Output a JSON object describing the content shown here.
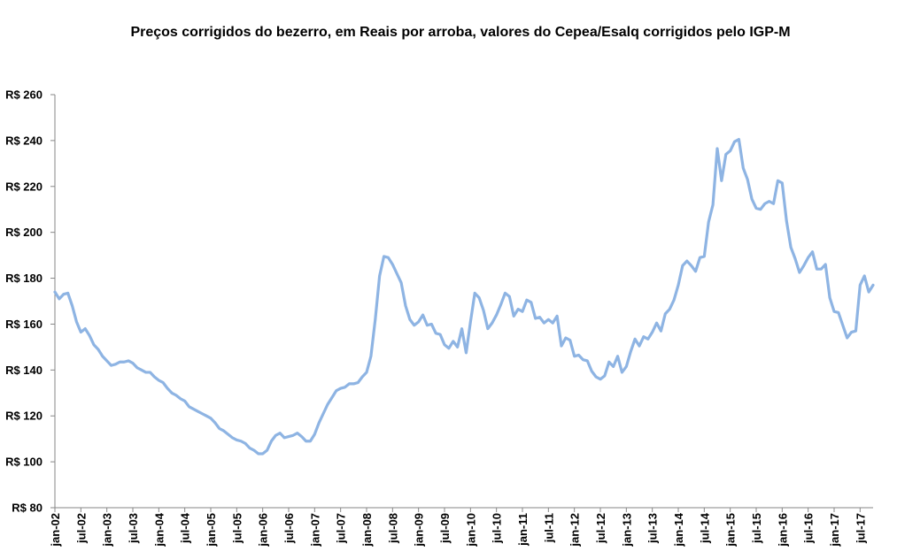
{
  "chart_data": {
    "type": "line",
    "title": "Preços corrigidos do bezerro, em  Reais por arroba, valores do Cepea/Esalq corrigidos pelo IGP-M",
    "xlabel": "",
    "ylabel": "",
    "ylim": [
      80,
      260
    ],
    "yticks": [
      {
        "value": 80,
        "label": "R$ 80"
      },
      {
        "value": 100,
        "label": "R$ 100"
      },
      {
        "value": 120,
        "label": "R$ 120"
      },
      {
        "value": 140,
        "label": "R$ 140"
      },
      {
        "value": 160,
        "label": "R$ 160"
      },
      {
        "value": 180,
        "label": "R$ 180"
      },
      {
        "value": 200,
        "label": "R$ 200"
      },
      {
        "value": 220,
        "label": "R$ 220"
      },
      {
        "value": 240,
        "label": "R$ 240"
      },
      {
        "value": 260,
        "label": "R$ 260"
      }
    ],
    "xticks": [
      {
        "index": 0,
        "label": "jan-02"
      },
      {
        "index": 6,
        "label": "jul-02"
      },
      {
        "index": 12,
        "label": "jan-03"
      },
      {
        "index": 18,
        "label": "jul-03"
      },
      {
        "index": 24,
        "label": "jan-04"
      },
      {
        "index": 30,
        "label": "jul-04"
      },
      {
        "index": 36,
        "label": "jan-05"
      },
      {
        "index": 42,
        "label": "jul-05"
      },
      {
        "index": 48,
        "label": "jan-06"
      },
      {
        "index": 54,
        "label": "jul-06"
      },
      {
        "index": 60,
        "label": "jan-07"
      },
      {
        "index": 66,
        "label": "jul-07"
      },
      {
        "index": 72,
        "label": "jan-08"
      },
      {
        "index": 78,
        "label": "jul-08"
      },
      {
        "index": 84,
        "label": "jan-09"
      },
      {
        "index": 90,
        "label": "jul-09"
      },
      {
        "index": 96,
        "label": "jan-10"
      },
      {
        "index": 102,
        "label": "jul-10"
      },
      {
        "index": 108,
        "label": "jan-11"
      },
      {
        "index": 114,
        "label": "jul-11"
      },
      {
        "index": 120,
        "label": "jan-12"
      },
      {
        "index": 126,
        "label": "jul-12"
      },
      {
        "index": 132,
        "label": "jan-13"
      },
      {
        "index": 138,
        "label": "jul-13"
      },
      {
        "index": 144,
        "label": "jan-14"
      },
      {
        "index": 150,
        "label": "jul-14"
      },
      {
        "index": 156,
        "label": "jan-15"
      },
      {
        "index": 162,
        "label": "jul-15"
      },
      {
        "index": 168,
        "label": "jan-16"
      },
      {
        "index": 174,
        "label": "jul-16"
      },
      {
        "index": 180,
        "label": "jan-17"
      },
      {
        "index": 186,
        "label": "jul-17"
      }
    ],
    "grid": false,
    "legend": "none",
    "series": [
      {
        "color": "#8EB4E3",
        "values": [
          174,
          171,
          173,
          173.5,
          168,
          161,
          156.5,
          158,
          155,
          151,
          149,
          146,
          144,
          142,
          142.5,
          143.5,
          143.5,
          144,
          143,
          141,
          140,
          139,
          139,
          137,
          135.5,
          134.5,
          132,
          130,
          129,
          127.5,
          126.5,
          124,
          123,
          122,
          121,
          120,
          119,
          117,
          114.5,
          113.5,
          112,
          110.5,
          109.5,
          109,
          108,
          106,
          105,
          103.5,
          103.5,
          105,
          109,
          111.5,
          112.5,
          110.5,
          111,
          111.5,
          112.5,
          111,
          109,
          109,
          112,
          117,
          121,
          125,
          128,
          131,
          132,
          132.5,
          134,
          134,
          134.5,
          137,
          139,
          146,
          162,
          181,
          189.5,
          189,
          186,
          182,
          178,
          168,
          162,
          159.5,
          161,
          164,
          159.5,
          160,
          156,
          155.5,
          151,
          149.5,
          152.5,
          150,
          158,
          147.5,
          161,
          173.5,
          171.5,
          166,
          158,
          160.5,
          164,
          168.5,
          173.5,
          172,
          163.5,
          166.5,
          165.5,
          170.5,
          169.5,
          162.5,
          163,
          160.5,
          162,
          160.5,
          163.5,
          150.5,
          154,
          153,
          146,
          146.5,
          144.5,
          144,
          139.5,
          137,
          136,
          137.5,
          143.5,
          141.5,
          146,
          139,
          141.5,
          148,
          153.5,
          150.5,
          154.5,
          153.5,
          156.5,
          160.5,
          157,
          164.5,
          166.5,
          170.5,
          177,
          185.5,
          187.5,
          185.5,
          183,
          189,
          189.5,
          204.5,
          212,
          236.5,
          222.5,
          234,
          235.5,
          239.5,
          240.5,
          228,
          223,
          214.5,
          210.5,
          210,
          212.5,
          213.5,
          212.5,
          222.5,
          221.5,
          205,
          193.5,
          188.5,
          182.5,
          185.5,
          189,
          191.5,
          184,
          184,
          186,
          171.5,
          165.5,
          165,
          159.5,
          154,
          156.5,
          157,
          177,
          181,
          174,
          177
        ]
      }
    ]
  }
}
